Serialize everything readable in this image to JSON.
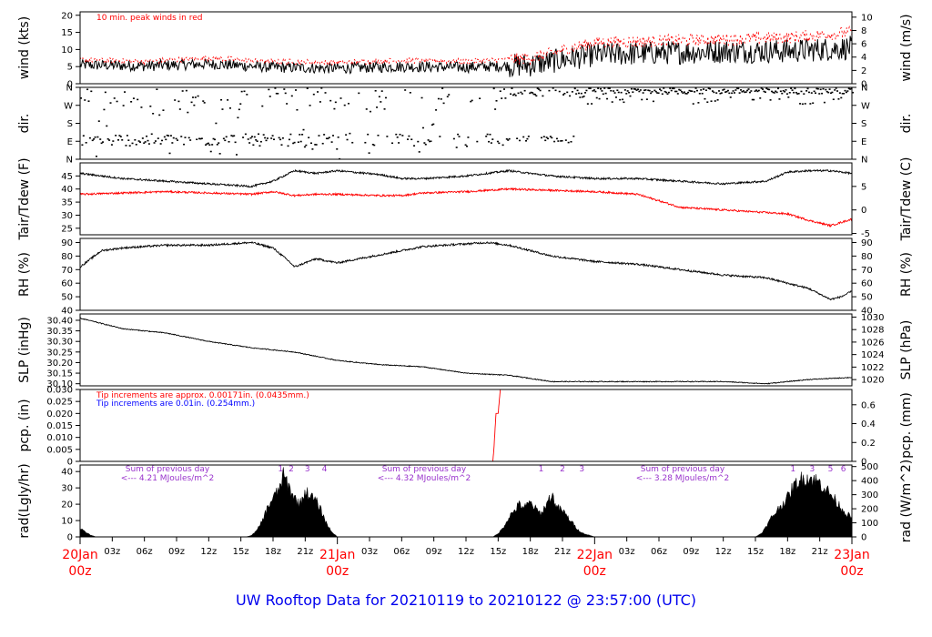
{
  "title": "UW Rooftop Data for 20210119  to  20210122 @ 23:57:00  (UTC)",
  "colors": {
    "primary": "#000000",
    "secondary": "#ff0000",
    "blue": "#0000ff",
    "purple": "#9933cc",
    "title": "#0000ee"
  },
  "x_axis": {
    "hour_ticks": [
      "03z",
      "06z",
      "09z",
      "12z",
      "15z",
      "18z",
      "21z",
      "03z",
      "06z",
      "09z",
      "12z",
      "15z",
      "18z",
      "21z",
      "03z",
      "06z",
      "09z",
      "12z",
      "15z",
      "18z",
      "21z"
    ],
    "day_labels": [
      {
        "date": "20Jan",
        "hour": "00z"
      },
      {
        "date": "21Jan",
        "hour": "00z"
      },
      {
        "date": "22Jan",
        "hour": "00z"
      },
      {
        "date": "23Jan",
        "hour": "00z"
      }
    ]
  },
  "chart_data": [
    {
      "type": "line",
      "id": "wind",
      "ylabel": "wind (kts)",
      "ylabel_right": "wind (m/s)",
      "ylim": [
        0,
        21
      ],
      "yticks": [
        "0",
        "5",
        "10",
        "15",
        "20"
      ],
      "right_ylim": [
        0,
        10.8
      ],
      "right_ticks": [
        "0",
        "2",
        "4",
        "6",
        "8",
        "10"
      ],
      "annotation": "10 min. peak winds in red",
      "x": [
        0,
        6,
        12,
        18,
        24,
        30,
        36,
        42,
        48,
        54,
        60,
        66,
        72
      ],
      "series": [
        {
          "values": [
            5.5,
            5.2,
            5.8,
            4.8,
            4.5,
            5,
            4.8,
            5.5,
            8.5,
            9,
            9.5,
            9.5,
            10.5
          ]
        },
        {
          "values": [
            7,
            6.5,
            7.5,
            6.5,
            6.2,
            6.8,
            6.5,
            7.5,
            12,
            12.5,
            13,
            13.5,
            15
          ]
        }
      ]
    },
    {
      "type": "scatter",
      "id": "dir",
      "ylabel": "dir.",
      "ylabel_right": "dir.",
      "ylim": [
        0,
        360
      ],
      "yticks": [
        "N",
        "E",
        "S",
        "W",
        "N"
      ],
      "right_ticks": [
        "N",
        "E",
        "S",
        "W",
        "N"
      ]
    },
    {
      "type": "line",
      "id": "temp",
      "ylabel": "Tair/Tdew (F)",
      "ylabel_right": "Tair/Tdew (C)",
      "ylim": [
        22.5,
        50
      ],
      "yticks": [
        "25",
        "30",
        "35",
        "40",
        "45"
      ],
      "right_ylim": [
        -5.28,
        10
      ],
      "right_ticks": [
        "-5",
        "0",
        "5"
      ],
      "x": [
        0,
        4,
        8,
        12,
        16,
        18,
        20,
        22,
        24,
        28,
        30,
        32,
        36,
        40,
        44,
        48,
        52,
        56,
        60,
        64,
        66,
        68,
        70,
        72
      ],
      "series": [
        {
          "values": [
            46,
            44,
            43,
            42,
            41,
            43,
            47,
            46,
            47,
            45.5,
            44,
            44,
            45,
            47,
            45,
            44,
            44,
            43,
            42,
            43,
            46.5,
            47,
            47,
            46
          ]
        },
        {
          "values": [
            38,
            38.5,
            39,
            38.5,
            38,
            39,
            37.5,
            38,
            38,
            37.5,
            37.5,
            38.5,
            39,
            40,
            39.5,
            39,
            38,
            33,
            32,
            31,
            30.5,
            28,
            26,
            28.5
          ]
        }
      ]
    },
    {
      "type": "line",
      "id": "rh",
      "ylabel": "RH (%)",
      "ylabel_right": "RH (%)",
      "ylim": [
        40,
        93
      ],
      "yticks": [
        "40",
        "50",
        "60",
        "70",
        "80",
        "90"
      ],
      "right_ticks": [
        "40",
        "50",
        "60",
        "70",
        "80",
        "90"
      ],
      "x": [
        0,
        2,
        4,
        8,
        12,
        16,
        18,
        19.5,
        20,
        22,
        24,
        28,
        32,
        36,
        38,
        40,
        44,
        48,
        50,
        52,
        56,
        60,
        64,
        66,
        68,
        70,
        71,
        72
      ],
      "series": [
        {
          "values": [
            72,
            84,
            86,
            88,
            88,
            90,
            86,
            76,
            72,
            78,
            75,
            81,
            87,
            89,
            90,
            88,
            80,
            76,
            75,
            74,
            70,
            66,
            64,
            60,
            56,
            48,
            50,
            54
          ]
        }
      ]
    },
    {
      "type": "line",
      "id": "slp",
      "ylabel": "SLP (inHg)",
      "ylabel_right": "SLP (hPa)",
      "ylim": [
        30.09,
        30.43
      ],
      "yticks": [
        "30.10",
        "30.15",
        "30.20",
        "30.25",
        "30.30",
        "30.35",
        "30.40"
      ],
      "right_ylim": [
        1019.0,
        1030.5
      ],
      "right_ticks": [
        "1020",
        "1022",
        "1024",
        "1026",
        "1028",
        "1030"
      ],
      "x": [
        0,
        4,
        8,
        12,
        16,
        20,
        24,
        28,
        32,
        36,
        40,
        44,
        48,
        52,
        56,
        60,
        64,
        68,
        72
      ],
      "series": [
        {
          "values": [
            30.41,
            30.36,
            30.34,
            30.3,
            30.27,
            30.25,
            30.21,
            30.19,
            30.18,
            30.15,
            30.14,
            30.11,
            30.11,
            30.11,
            30.11,
            30.11,
            30.1,
            30.12,
            30.13
          ]
        }
      ]
    },
    {
      "type": "line",
      "id": "pcp",
      "ylabel": "pcp. (in)",
      "ylabel_right": "pcp. (mm)",
      "ylim": [
        0,
        0.03
      ],
      "yticks": [
        "0",
        "0.005",
        "0.010",
        "0.015",
        "0.020",
        "0.025",
        "0.030"
      ],
      "right_ylim": [
        0,
        0.762
      ],
      "right_ticks": [
        "0",
        "0.2",
        "0.4",
        "0.6"
      ],
      "annotation_red": "Tip increments are approx. 0.00171in. (0.0435mm.)",
      "annotation_blue": "Tip increments are 0.01in. (0.254mm.)",
      "x": [
        0,
        38.5,
        38.6,
        38.8,
        39,
        39.2,
        72
      ],
      "series": [
        {
          "values": [
            0,
            0,
            0.005,
            0.02,
            0.02,
            0.03,
            0.03
          ]
        }
      ]
    },
    {
      "type": "area",
      "id": "rad",
      "ylabel": "rad(Lgly/hr)",
      "ylabel_right": "rad (W/m^2)",
      "ylim": [
        0,
        44
      ],
      "yticks": [
        "0",
        "10",
        "20",
        "30",
        "40"
      ],
      "right_ylim": [
        0,
        511
      ],
      "right_ticks": [
        "0",
        "100",
        "200",
        "300",
        "400",
        "500"
      ],
      "annotations": [
        {
          "line1": "Sum of previous day",
          "line2": "<--- 4.21 MJoules/m^2"
        },
        {
          "line1": "Sum of previous day",
          "line2": "<--- 4.32 MJoules/m^2"
        },
        {
          "line1": "Sum of previous day",
          "line2": "<--- 3.28 MJoules/m^2"
        }
      ],
      "markers": [
        {
          "label": "1",
          "x": 18.7
        },
        {
          "label": "2",
          "x": 19.7
        },
        {
          "label": "3",
          "x": 21.2
        },
        {
          "label": "4",
          "x": 22.8
        },
        {
          "label": "1",
          "x": 43
        },
        {
          "label": "2",
          "x": 45
        },
        {
          "label": "3",
          "x": 46.8
        },
        {
          "label": "1",
          "x": 66.5
        },
        {
          "label": "3",
          "x": 68.3
        },
        {
          "label": "5",
          "x": 70
        },
        {
          "label": "6",
          "x": 71.2
        }
      ],
      "x": [
        0,
        0.5,
        1,
        1.5,
        15.5,
        16,
        16.5,
        17,
        17.5,
        18,
        18.5,
        19,
        19.5,
        20,
        20.5,
        21,
        21.5,
        22,
        22.5,
        23,
        23.5,
        24,
        38.5,
        39,
        39.5,
        40,
        40.5,
        41,
        41.5,
        42,
        42.5,
        43,
        43.5,
        44,
        44.5,
        45,
        45.5,
        46,
        46.5,
        47,
        47.5,
        48,
        63,
        63.5,
        64,
        64.5,
        65,
        65.5,
        66,
        66.5,
        67,
        67.5,
        68,
        68.5,
        69,
        69.5,
        70,
        70.5,
        71,
        71.5,
        72
      ],
      "series": [
        {
          "values": [
            5,
            3,
            1,
            0,
            0,
            1,
            4,
            10,
            18,
            24,
            28,
            38,
            30,
            24,
            20,
            28,
            25,
            22,
            16,
            8,
            3,
            0,
            0,
            2,
            6,
            12,
            16,
            20,
            18,
            21,
            17,
            14,
            20,
            26,
            18,
            16,
            12,
            8,
            4,
            2,
            1,
            0,
            0,
            2,
            6,
            12,
            16,
            20,
            24,
            30,
            34,
            36,
            36,
            35,
            33,
            30,
            26,
            22,
            18,
            14,
            12
          ]
        }
      ]
    }
  ]
}
